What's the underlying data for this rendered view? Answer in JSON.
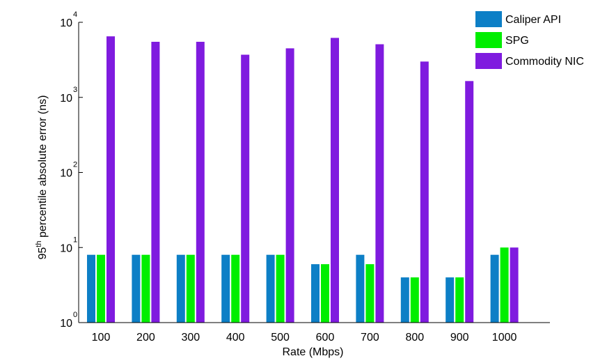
{
  "chart_data": {
    "type": "bar",
    "xlabel": "Rate (Mbps)",
    "ylabel": {
      "prefix": "95",
      "superscript": "th",
      "suffix": " percentile absolute error (ns)"
    },
    "yscale": "log",
    "ylim": [
      1,
      10000
    ],
    "y_ticks": [
      {
        "base": "10",
        "exp": "0"
      },
      {
        "base": "10",
        "exp": "1"
      },
      {
        "base": "10",
        "exp": "2"
      },
      {
        "base": "10",
        "exp": "3"
      },
      {
        "base": "10",
        "exp": "4"
      }
    ],
    "grid": false,
    "legend_position": "top-right",
    "categories": [
      "100",
      "200",
      "300",
      "400",
      "500",
      "600",
      "700",
      "800",
      "900",
      "1000"
    ],
    "series": [
      {
        "name": "Caliper API",
        "color": "#0d7fc6",
        "values": [
          8,
          8,
          8,
          8,
          8,
          6,
          8,
          4,
          4,
          8
        ]
      },
      {
        "name": "SPG",
        "color": "#00ee00",
        "values": [
          8,
          8,
          8,
          8,
          8,
          6,
          6,
          4,
          4,
          10
        ]
      },
      {
        "name": "Commodity NIC",
        "color": "#7f1bdf",
        "values": [
          6500,
          5500,
          5500,
          3700,
          4500,
          6200,
          5100,
          3000,
          1650,
          10
        ]
      }
    ]
  }
}
